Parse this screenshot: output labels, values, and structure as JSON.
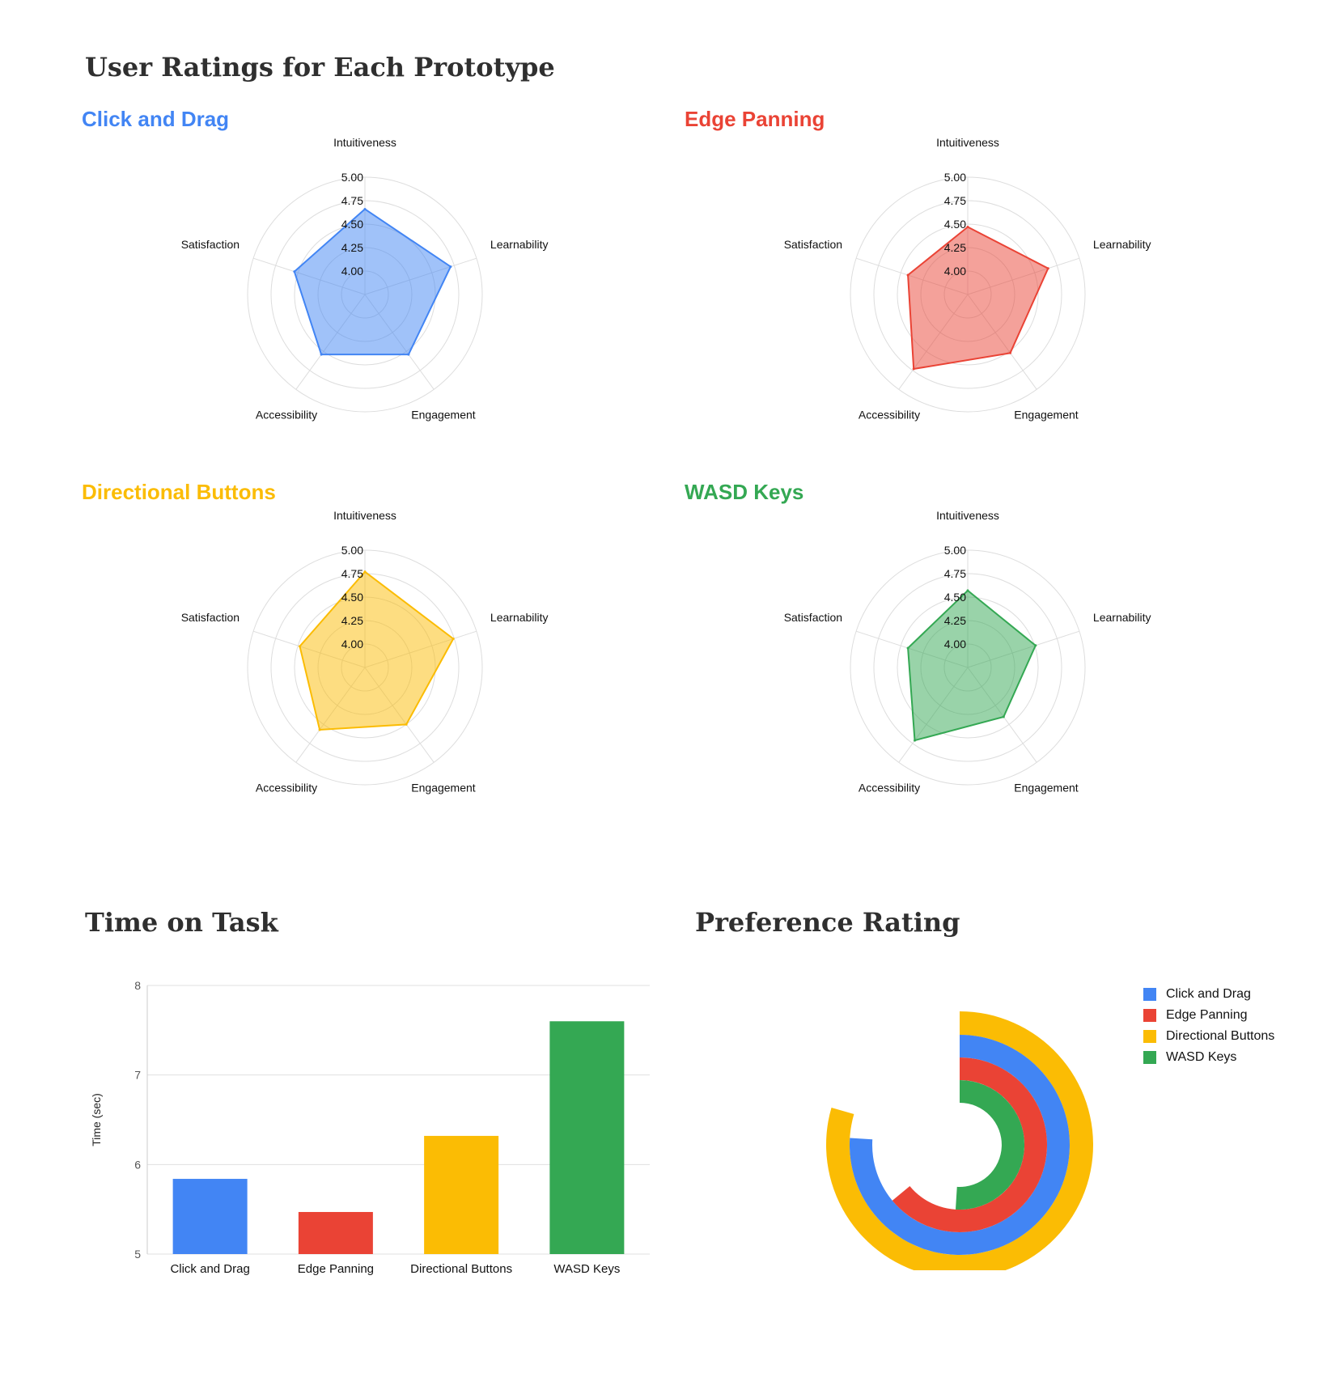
{
  "page": {
    "title": "User Ratings for Each Prototype",
    "time_title": "Time on Task",
    "preference_title": "Preference Rating"
  },
  "colors": {
    "blue": "#4285F4",
    "red": "#EA4335",
    "yellow": "#FBBC04",
    "green": "#34A853",
    "grid": "#dddddd"
  },
  "chart_data": [
    {
      "type": "radar",
      "title": "Click and Drag",
      "axes": [
        "Intuitiveness",
        "Learnability",
        "Engagement",
        "Accessibility",
        "Satisfaction"
      ],
      "tick_labels": [
        "4.00",
        "4.25",
        "4.50",
        "4.75",
        "5.00"
      ],
      "rlim": [
        3.75,
        5.0
      ],
      "values": [
        4.66,
        4.71,
        4.54,
        4.54,
        4.54
      ],
      "color": "#4285F4"
    },
    {
      "type": "radar",
      "title": "Edge Panning",
      "axes": [
        "Intuitiveness",
        "Learnability",
        "Engagement",
        "Accessibility",
        "Satisfaction"
      ],
      "tick_labels": [
        "4.00",
        "4.25",
        "4.50",
        "4.75",
        "5.00"
      ],
      "rlim": [
        3.75,
        5.0
      ],
      "values": [
        4.47,
        4.65,
        4.52,
        4.73,
        4.42
      ],
      "color": "#EA4335"
    },
    {
      "type": "radar",
      "title": "Directional Buttons",
      "axes": [
        "Intuitiveness",
        "Learnability",
        "Engagement",
        "Accessibility",
        "Satisfaction"
      ],
      "tick_labels": [
        "4.00",
        "4.25",
        "4.50",
        "4.75",
        "5.00"
      ],
      "rlim": [
        3.75,
        5.0
      ],
      "values": [
        4.77,
        4.74,
        4.5,
        4.57,
        4.48
      ],
      "color": "#FBBC04"
    },
    {
      "type": "radar",
      "title": "WASD Keys",
      "axes": [
        "Intuitiveness",
        "Learnability",
        "Engagement",
        "Accessibility",
        "Satisfaction"
      ],
      "tick_labels": [
        "4.00",
        "4.25",
        "4.50",
        "4.75",
        "5.00"
      ],
      "rlim": [
        3.75,
        5.0
      ],
      "values": [
        4.57,
        4.51,
        4.4,
        4.71,
        4.42
      ],
      "color": "#34A853"
    },
    {
      "type": "bar",
      "title": "Time on Task",
      "categories": [
        "Click and Drag",
        "Edge Panning",
        "Directional Buttons",
        "WASD Keys"
      ],
      "values": [
        5.84,
        5.47,
        6.32,
        7.6
      ],
      "ylabel": "Time (sec)",
      "ylim": [
        5,
        8
      ],
      "yticks": [
        5,
        6,
        7,
        8
      ],
      "grid": true,
      "colors": [
        "#4285F4",
        "#EA4335",
        "#FBBC04",
        "#34A853"
      ]
    },
    {
      "type": "radial-bar",
      "title": "Preference Rating",
      "series": [
        {
          "name": "Click and Drag",
          "fraction": 0.76,
          "color": "#4285F4"
        },
        {
          "name": "Edge Panning",
          "fraction": 0.64,
          "color": "#EA4335"
        },
        {
          "name": "Directional Buttons",
          "fraction": 0.795,
          "color": "#FBBC04"
        },
        {
          "name": "WASD Keys",
          "fraction": 0.51,
          "color": "#34A853"
        }
      ],
      "legend": "top-right"
    }
  ]
}
